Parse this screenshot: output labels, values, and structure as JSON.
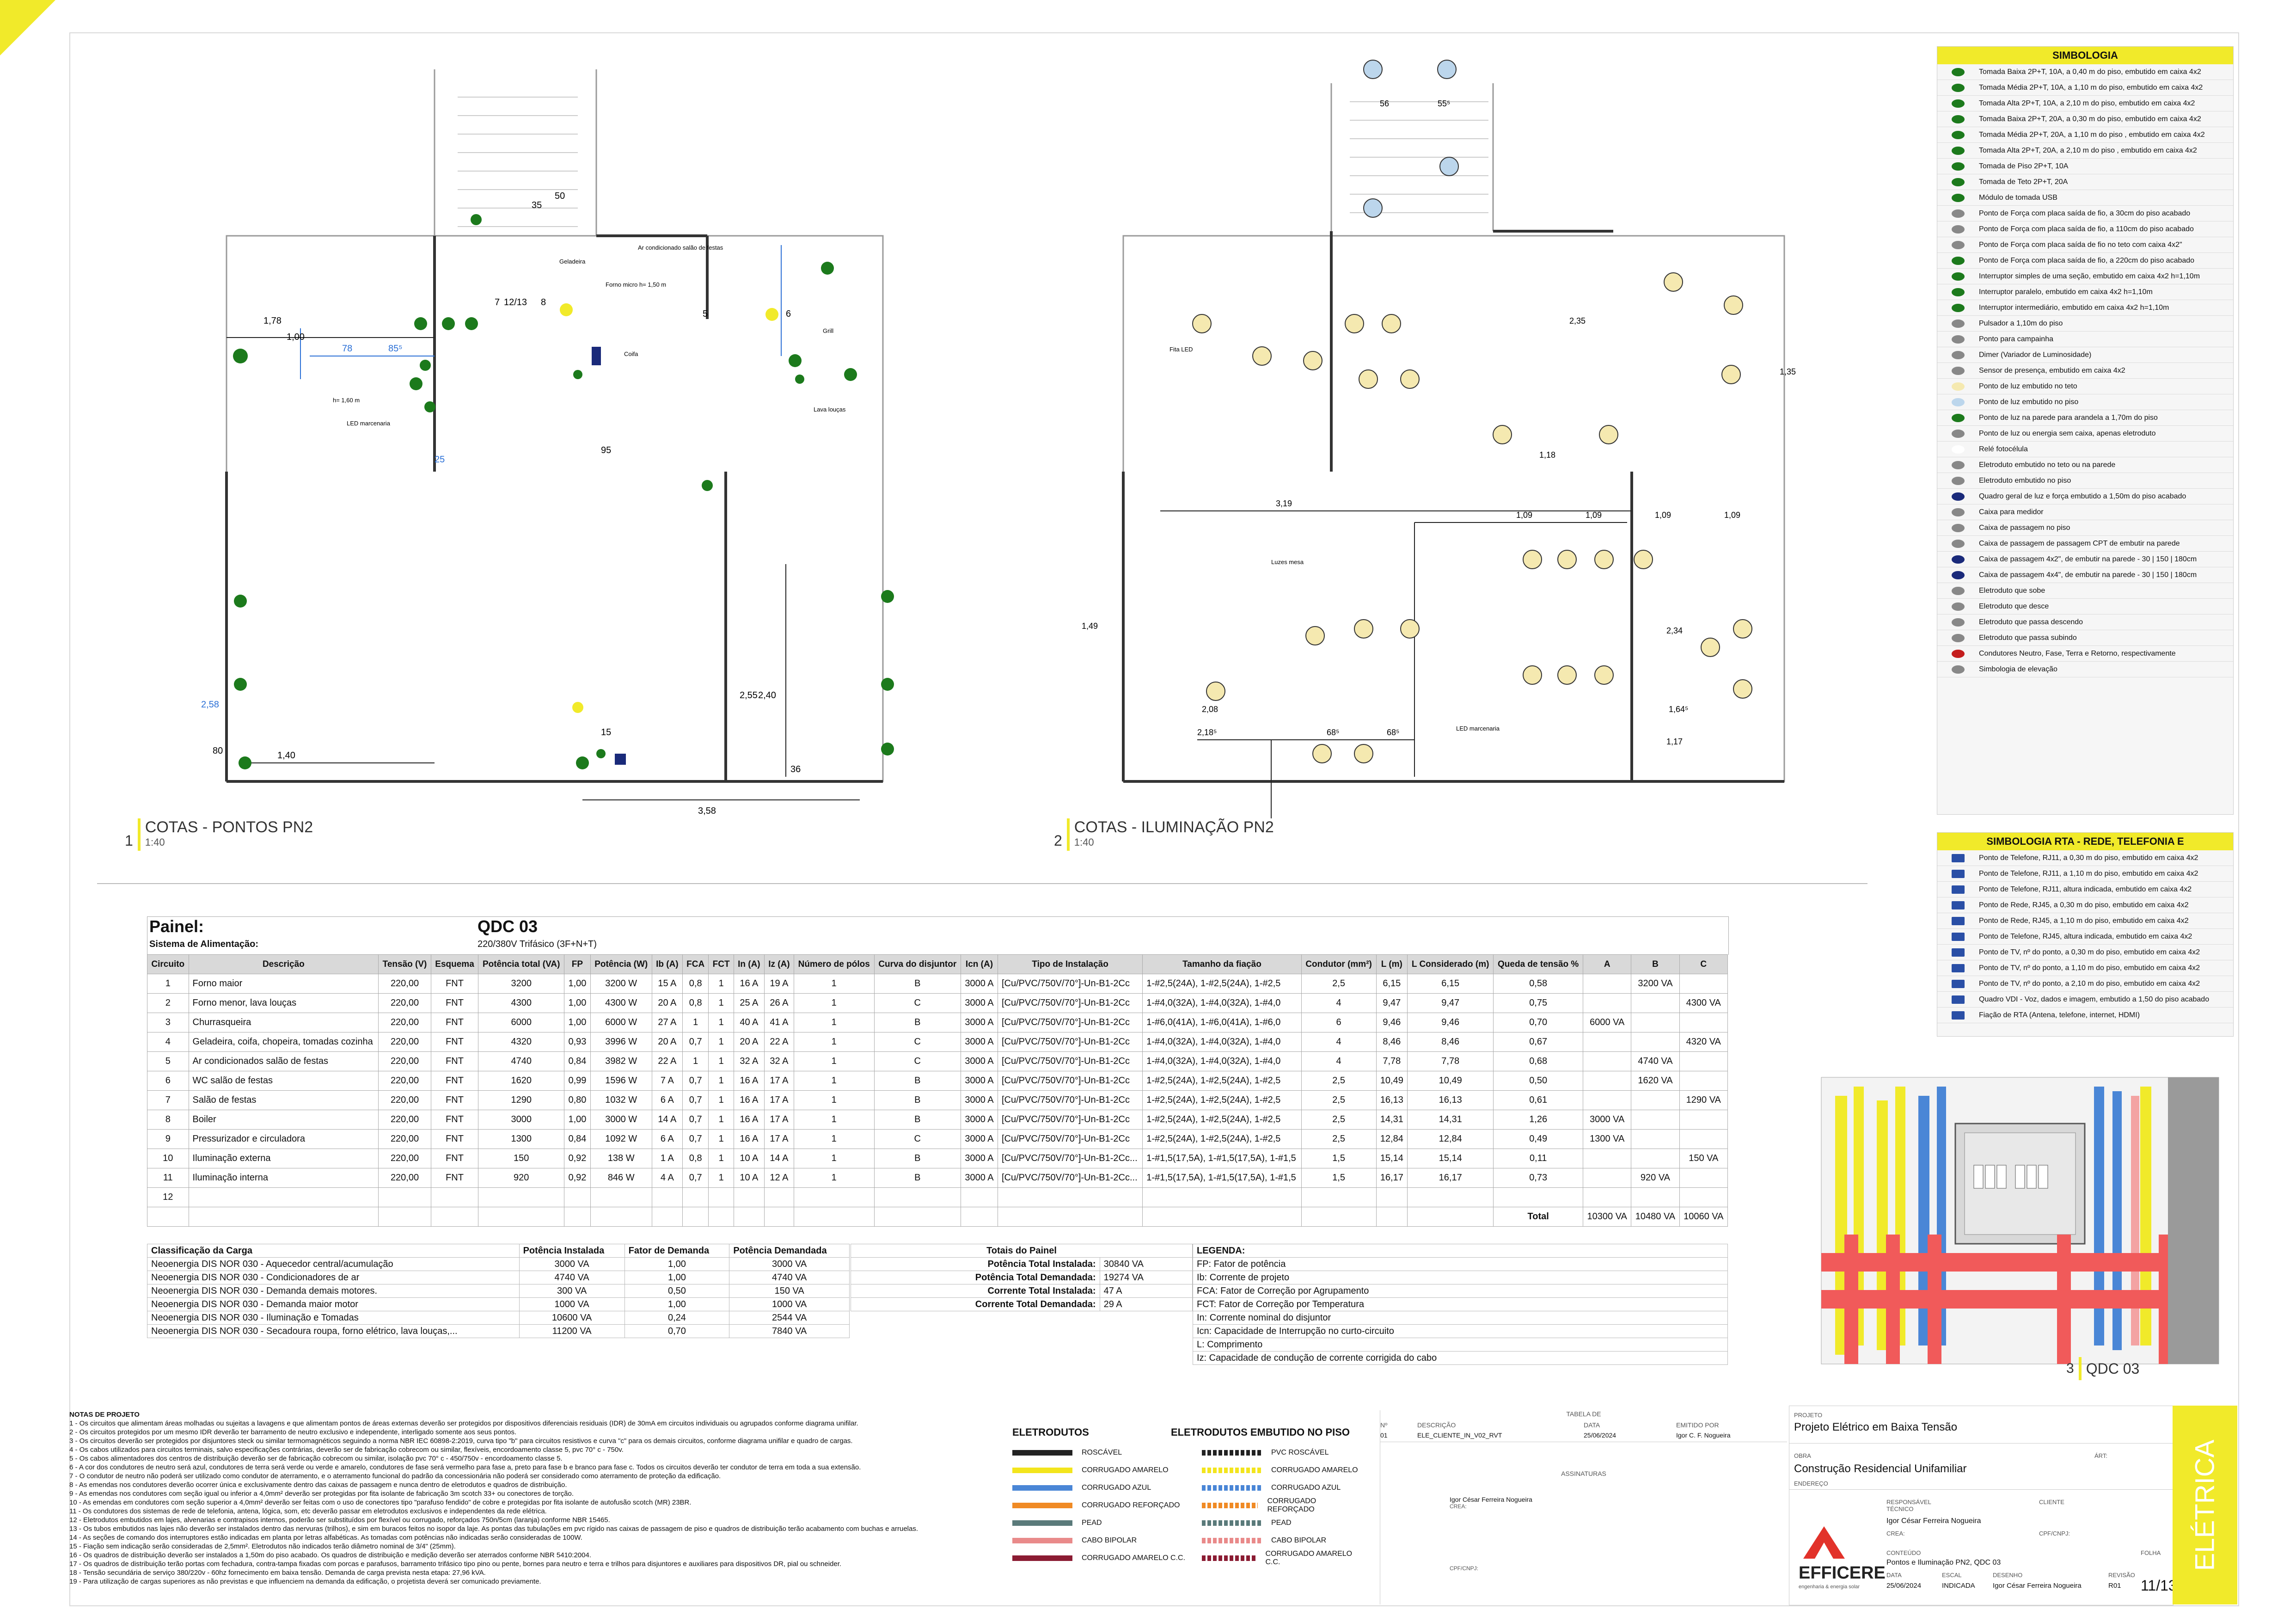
{
  "drawing1": {
    "number": "1",
    "title": "COTAS - PONTOS PN2",
    "scale": "1:40"
  },
  "drawing2": {
    "number": "2",
    "title": "COTAS - ILUMINAÇÃO PN2",
    "scale": "1:40"
  },
  "drawing3": {
    "number": "3",
    "title": "QDC 03"
  },
  "plan1_labels": {
    "d178": "1,78",
    "d100": "1,00",
    "d78": "78",
    "d85": "85⁵",
    "d95": "95",
    "d25": "25",
    "d35": "35",
    "d50": "50",
    "d140": "1,40",
    "d80": "80",
    "d258": "2,58",
    "d255": "2,55",
    "d240": "2,40",
    "d358": "3,58",
    "d15": "15",
    "d36": "36",
    "circ": "7",
    "circ2": "12/13",
    "circ3": "8",
    "circ4": "5",
    "circ5": "6",
    "lbl_led": "LED marcenaria",
    "lbl_coifa": "Coifa",
    "lbl_forno": "Forno micro h= 1,50 m",
    "lbl_ar": "Ar condicionado salão de festas",
    "lbl_geladeira": "Geladeira",
    "lbl_grill": "Grill",
    "lbl_lava": "Lava louças",
    "lbl_h": "h= 1,60 m"
  },
  "plan2_labels": {
    "d56": "56",
    "d55": "55⁵",
    "d319": "3,19",
    "d109": "1,09",
    "d118": "1,18",
    "d235": "2,35",
    "d135": "1,35",
    "d149": "1,49",
    "d208": "2,08",
    "d218": "2,18⁵",
    "d68": "68⁵",
    "d234": "2,34",
    "d117": "1,17",
    "d164": "1,64⁵",
    "lbl_luminaria": "Luzes mesa",
    "lbl_fita": "Fita LED",
    "lbl_led": "LED marcenaria"
  },
  "simbologia": {
    "title": "SIMBOLOGIA",
    "items": [
      "Tomada Baixa 2P+T, 10A, a 0,40 m do piso, embutido em caixa 4x2",
      "Tomada Média 2P+T, 10A, a 1,10 m do piso, embutido em caixa 4x2",
      "Tomada Alta 2P+T, 10A, a 2,10 m do piso, embutido em caixa 4x2",
      "Tomada Baixa 2P+T, 20A, a 0,30 m do piso, embutido em caixa 4x2",
      "Tomada Média 2P+T, 20A, a 1,10 m do piso , embutido em caixa 4x2",
      "Tomada Alta 2P+T, 20A, a 2,10 m do piso , embutido em caixa 4x2",
      "Tomada de Piso 2P+T, 10A",
      "Tomada de Teto 2P+T, 20A",
      "Módulo de tomada USB",
      "Ponto de Força com placa saída de fio, a 30cm do piso acabado",
      "Ponto de Força com placa saída de fio, a 110cm do piso acabado",
      "Ponto de Força com placa saída de fio no teto com caixa 4x2\"",
      "Ponto de Força com placa saída de fio, a 220cm do piso acabado",
      "Interruptor simples de uma seção, embutido em caixa 4x2 h=1,10m",
      "Interruptor paralelo, embutido em caixa 4x2 h=1,10m",
      "Interruptor intermediário, embutido em caixa 4x2 h=1,10m",
      "Pulsador a 1,10m do piso",
      "Ponto para campainha",
      "Dimer (Variador de Luminosidade)",
      "Sensor de presença, embutido em caixa 4x2",
      "Ponto de luz embutido no teto",
      "Ponto de luz embutido no piso",
      "Ponto de luz na parede para arandela a 1,70m do piso",
      "Ponto de luz ou energia sem caixa, apenas eletroduto",
      "Relé fotocélula",
      "Eletroduto embutido no teto ou na parede",
      "Eletroduto embutido no piso",
      "Quadro geral de luz e força embutido a 1,50m do piso acabado",
      "Caixa para medidor",
      "Caixa de passagem no piso",
      "Caixa de passagem de passagem CPT de embutir na parede",
      "Caixa de passagem 4x2\", de embutir na parede - 30 | 150 | 180cm",
      "Caixa de passagem 4x4\", de embutir na parede - 30 | 150 | 180cm",
      "Eletroduto que sobe",
      "Eletroduto que desce",
      "Eletroduto que passa descendo",
      "Eletroduto que passa subindo",
      "Condutores Neutro, Fase, Terra e Retorno, respectivamente",
      "Simbologia de elevação"
    ]
  },
  "simbologia_rta": {
    "title": "SIMBOLOGIA RTA - REDE, TELEFONIA E",
    "items": [
      "Ponto de Telefone, RJ11, a 0,30 m do piso, embutido em caixa 4x2",
      "Ponto de Telefone, RJ11, a 1,10 m do piso, embutido em caixa 4x2",
      "Ponto de Telefone, RJ11, altura indicada, embutido em caixa 4x2",
      "Ponto de Rede, RJ45, a 0,30 m do piso, embutido em caixa 4x2",
      "Ponto de Rede, RJ45, a 1,10 m do piso, embutido em caixa 4x2",
      "Ponto de Telefone, RJ45, altura indicada, embutido em caixa 4x2",
      "Ponto de TV, nº do ponto, a 0,30 m do piso, embutido em caixa 4x2",
      "Ponto de TV, nº do ponto, a 1,10 m do piso, embutido em caixa 4x2",
      "Ponto de TV, nº do ponto, a 2,10 m do piso, embutido em caixa 4x2",
      "Quadro VDI - Voz, dados e imagem, embutido a 1,50 do piso acabado",
      "Fiação de RTA (Antena, telefone, internet, HDMI)"
    ]
  },
  "panel": {
    "label": "Painel:",
    "name": "QDC 03",
    "system_label": "Sistema de Alimentação:",
    "system_value": "220/380V Trifásico (3F+N+T)",
    "headers": [
      "Circuito",
      "Descrição",
      "Tensão (V)",
      "Esquema",
      "Potência total (VA)",
      "FP",
      "Potência (W)",
      "Ib (A)",
      "FCA",
      "FCT",
      "In (A)",
      "Iz (A)",
      "Número de pólos",
      "Curva do disjuntor",
      "Icn (A)",
      "Tipo de Instalação",
      "Tamanho da fiação",
      "Condutor (mm²)",
      "L (m)",
      "L Considerado (m)",
      "Queda de tensão %",
      "A",
      "B",
      "C"
    ],
    "rows": [
      [
        "1",
        "Forno maior",
        "220,00",
        "FNT",
        "3200",
        "1,00",
        "3200 W",
        "15 A",
        "0,8",
        "1",
        "16 A",
        "19 A",
        "1",
        "B",
        "3000 A",
        "[Cu/PVC/750V/70°]-Un-B1-2Cc",
        "1-#2,5(24A), 1-#2,5(24A), 1-#2,5",
        "2,5",
        "6,15",
        "6,15",
        "0,58",
        "",
        "3200 VA",
        ""
      ],
      [
        "2",
        "Forno menor, lava louças",
        "220,00",
        "FNT",
        "4300",
        "1,00",
        "4300 W",
        "20 A",
        "0,8",
        "1",
        "25 A",
        "26 A",
        "1",
        "C",
        "3000 A",
        "[Cu/PVC/750V/70°]-Un-B1-2Cc",
        "1-#4,0(32A), 1-#4,0(32A), 1-#4,0",
        "4",
        "9,47",
        "9,47",
        "0,75",
        "",
        "",
        "4300 VA"
      ],
      [
        "3",
        "Churrasqueira",
        "220,00",
        "FNT",
        "6000",
        "1,00",
        "6000 W",
        "27 A",
        "1",
        "1",
        "40 A",
        "41 A",
        "1",
        "B",
        "3000 A",
        "[Cu/PVC/750V/70°]-Un-B1-2Cc",
        "1-#6,0(41A), 1-#6,0(41A), 1-#6,0",
        "6",
        "9,46",
        "9,46",
        "0,70",
        "6000 VA",
        "",
        ""
      ],
      [
        "4",
        "Geladeira, coifa, chopeira, tomadas cozinha",
        "220,00",
        "FNT",
        "4320",
        "0,93",
        "3996 W",
        "20 A",
        "0,7",
        "1",
        "20 A",
        "22 A",
        "1",
        "C",
        "3000 A",
        "[Cu/PVC/750V/70°]-Un-B1-2Cc",
        "1-#4,0(32A), 1-#4,0(32A), 1-#4,0",
        "4",
        "8,46",
        "8,46",
        "0,67",
        "",
        "",
        "4320 VA"
      ],
      [
        "5",
        "Ar condicionados salão de festas",
        "220,00",
        "FNT",
        "4740",
        "0,84",
        "3982 W",
        "22 A",
        "1",
        "1",
        "32 A",
        "32 A",
        "1",
        "C",
        "3000 A",
        "[Cu/PVC/750V/70°]-Un-B1-2Cc",
        "1-#4,0(32A), 1-#4,0(32A), 1-#4,0",
        "4",
        "7,78",
        "7,78",
        "0,68",
        "",
        "4740 VA",
        ""
      ],
      [
        "6",
        "WC salão de festas",
        "220,00",
        "FNT",
        "1620",
        "0,99",
        "1596 W",
        "7 A",
        "0,7",
        "1",
        "16 A",
        "17 A",
        "1",
        "B",
        "3000 A",
        "[Cu/PVC/750V/70°]-Un-B1-2Cc",
        "1-#2,5(24A), 1-#2,5(24A), 1-#2,5",
        "2,5",
        "10,49",
        "10,49",
        "0,50",
        "",
        "1620 VA",
        ""
      ],
      [
        "7",
        "Salão de festas",
        "220,00",
        "FNT",
        "1290",
        "0,80",
        "1032 W",
        "6 A",
        "0,7",
        "1",
        "16 A",
        "17 A",
        "1",
        "B",
        "3000 A",
        "[Cu/PVC/750V/70°]-Un-B1-2Cc",
        "1-#2,5(24A), 1-#2,5(24A), 1-#2,5",
        "2,5",
        "16,13",
        "16,13",
        "0,61",
        "",
        "",
        "1290 VA"
      ],
      [
        "8",
        "Boiler",
        "220,00",
        "FNT",
        "3000",
        "1,00",
        "3000 W",
        "14 A",
        "0,7",
        "1",
        "16 A",
        "17 A",
        "1",
        "B",
        "3000 A",
        "[Cu/PVC/750V/70°]-Un-B1-2Cc",
        "1-#2,5(24A), 1-#2,5(24A), 1-#2,5",
        "2,5",
        "14,31",
        "14,31",
        "1,26",
        "3000 VA",
        "",
        ""
      ],
      [
        "9",
        "Pressurizador e circuladora",
        "220,00",
        "FNT",
        "1300",
        "0,84",
        "1092 W",
        "6 A",
        "0,7",
        "1",
        "16 A",
        "17 A",
        "1",
        "C",
        "3000 A",
        "[Cu/PVC/750V/70°]-Un-B1-2Cc",
        "1-#2,5(24A), 1-#2,5(24A), 1-#2,5",
        "2,5",
        "12,84",
        "12,84",
        "0,49",
        "1300 VA",
        "",
        ""
      ],
      [
        "10",
        "Iluminação externa",
        "220,00",
        "FNT",
        "150",
        "0,92",
        "138 W",
        "1 A",
        "0,8",
        "1",
        "10 A",
        "14 A",
        "1",
        "B",
        "3000 A",
        "[Cu/PVC/750V/70°]-Un-B1-2Cc...",
        "1-#1,5(17,5A), 1-#1,5(17,5A), 1-#1,5",
        "1,5",
        "15,14",
        "15,14",
        "0,11",
        "",
        "",
        "150 VA"
      ],
      [
        "11",
        "Iluminação interna",
        "220,00",
        "FNT",
        "920",
        "0,92",
        "846 W",
        "4 A",
        "0,7",
        "1",
        "10 A",
        "12 A",
        "1",
        "B",
        "3000 A",
        "[Cu/PVC/750V/70°]-Un-B1-2Cc...",
        "1-#1,5(17,5A), 1-#1,5(17,5A), 1-#1,5",
        "1,5",
        "16,17",
        "16,17",
        "0,73",
        "",
        "920 VA",
        ""
      ],
      [
        "12",
        "",
        "",
        "",
        "",
        "",
        "",
        "",
        "",
        "",
        "",
        "",
        "",
        "",
        "",
        "",
        "",
        "",
        "",
        "",
        "",
        "",
        "",
        ""
      ]
    ],
    "total_label": "Total",
    "total_a": "10300 VA",
    "total_b": "10480 VA",
    "total_c": "10060 VA"
  },
  "classificacao": {
    "headers": [
      "Classificação da Carga",
      "Potência Instalada",
      "Fator de Demanda",
      "Potência Demandada"
    ],
    "rows": [
      [
        "Neoenergia DIS NOR 030  - Aquecedor central/acumulação",
        "3000 VA",
        "1,00",
        "3000 VA"
      ],
      [
        "Neoenergia DIS NOR 030 - Condicionadores de ar",
        "4740 VA",
        "1,00",
        "4740 VA"
      ],
      [
        "Neoenergia DIS NOR 030 - Demanda demais motores.",
        "300 VA",
        "0,50",
        "150 VA"
      ],
      [
        "Neoenergia DIS NOR 030 - Demanda maior motor",
        "1000 VA",
        "1,00",
        "1000 VA"
      ],
      [
        "Neoenergia DIS NOR 030 - Iluminação e Tomadas",
        "10600 VA",
        "0,24",
        "2544 VA"
      ],
      [
        "Neoenergia DIS NOR 030 - Secadoura roupa, forno elétrico, lava louças,...",
        "11200 VA",
        "0,70",
        "7840 VA"
      ]
    ]
  },
  "totais": {
    "title": "Totais do Painel",
    "rows": [
      [
        "Potência Total Instalada:",
        "30840 VA"
      ],
      [
        "Potência Total Demandada:",
        "19274 VA"
      ],
      [
        "Corrente Total Instalada:",
        "47 A"
      ],
      [
        "Corrente Total Demandada:",
        "29 A"
      ]
    ]
  },
  "legenda": {
    "title": "LEGENDA:",
    "items": [
      "FP: Fator de potência",
      "Ib: Corrente de projeto",
      "FCA: Fator de Correção por Agrupamento",
      "FCT: Fator de Correção por Temperatura",
      "In: Corrente nominal do disjuntor",
      "Icn: Capacidade de Interrupção no curto-circuito",
      "L: Comprimento",
      "Iz: Capacidade de condução de corrente corrigida do cabo"
    ]
  },
  "notas": {
    "title": "NOTAS DE PROJETO",
    "items": [
      "1 - Os circuitos que alimentam áreas molhadas ou sujeitas a lavagens e que alimentam pontos de áreas externas deverão ser protegidos por dispositivos diferenciais residuais (IDR) de 30mA em circuitos individuais ou agrupados conforme diagrama unifilar.",
      "2 - Os circuitos protegidos por um mesmo IDR deverão ter barramento de neutro exclusivo e independente, interligado somente aos seus pontos.",
      "3 - Os circuitos deverão ser protegidos por disjuntores steck ou similar termomagnéticos seguindo a norma NBR IEC 60898-2:2019, curva tipo \"b\" para circuitos resistivos e curva \"c\" para os demais circuitos, conforme diagrama unifilar e quadro de cargas.",
      "4 - Os cabos utilizados para circuitos terminais, salvo especificações contrárias, deverão ser de fabricação cobrecom ou similar, flexíveis, encordoamento classe 5, pvc 70° c - 750v.",
      "5 - Os cabos alimentadores dos centros de distribuição deverão ser de fabricação cobrecom ou similar, isolação pvc 70° c - 450/750v - encordoamento classe 5.",
      "6 - A cor dos condutores de neutro será azul, condutores de terra será verde ou verde e amarelo, condutores de fase será vermelho para fase a, preto para fase b e branco para fase c. Todos os circuitos deverão ter condutor de terra em toda a sua extensão.",
      "7 - O condutor de neutro não poderá ser utilizado como condutor de aterramento, e o aterramento funcional do padrão da concessionária não poderá ser considerado como aterramento de proteção da edificação.",
      "8 - As emendas nos condutores deverão ocorrer única e exclusivamente dentro das caixas de passagem e nunca dentro de eletrodutos e quadros de distribuição.",
      "9 - As emendas nos condutores com seção igual ou inferior a 4,0mm² deverão ser protegidas por fita isolante de fabricação 3m scotch 33+ ou conectores de torção.",
      "10 - As emendas em condutores com seção superior a 4,0mm² deverão ser feitas com o uso de conectores tipo \"parafuso fendido\" de cobre e protegidas por fita isolante de autofusão scotch (MR) 23BR.",
      "11 - Os condutores dos sistemas de rede de telefonia, antena, lógica, som, etc deverão passar em eletrodutos exclusivos e independentes da rede elétrica.",
      "12 - Eletrodutos embutidos em lajes, alvenarias e contrapisos internos, poderão ser substituídos por flexível ou corrugado, reforçados 750n/5cm (laranja) conforme NBR 15465.",
      "13 - Os tubos embutidos nas lajes não deverão ser instalados dentro das nervuras (trilhos), e sim em buracos feitos no isopor da laje. As pontas das tubulações em pvc rígido nas caixas de passagem de piso e quadros de distribuição terão acabamento com buchas e arruelas.",
      "14 - As seções de comando dos interruptores estão indicadas em planta por letras alfabéticas. As tomadas com potências não indicadas serão consideradas de 100W.",
      "15 - Fiação sem indicação serão consideradas de 2,5mm². Eletrodutos não indicados terão diâmetro nominal de 3/4\" (25mm).",
      "16 - Os quadros de distribuição deverão ser instalados a 1,50m do piso acabado. Os quadros de distribuição e medição deverão ser aterrados conforme NBR 5410:2004.",
      "17 - Os quadros de distribuição terão portas com fechadura, contra-tampa fixadas com porcas e parafusos, barramento trifásico tipo pino ou pente, bornes para neutro e terra e trilhos para disjuntores e auxiliares para dispositivos DR, pial ou schneider.",
      "18 - Tensão secundária de serviço 380/220v - 60hz fornecimento em baixa tensão. Demanda de carga prevista nesta etapa: 27,96 kVA.",
      "19 - Para utilização de cargas superiores as não previstas e que influenciem na demanda da edificação, o projetista deverá ser comunicado previamente."
    ]
  },
  "eletrodutos": {
    "title_a": "ELETRODUTOS",
    "title_b": "ELETRODUTOS EMBUTIDO NO PISO",
    "left": [
      "ROSCÁVEL",
      "CORRUGADO AMARELO",
      "CORRUGADO AZUL",
      "CORRUGADO REFORÇADO",
      "PEAD",
      "CABO BIPOLAR",
      "CORRUGADO AMARELO C.C."
    ],
    "right": [
      "PVC ROSCÁVEL",
      "CORRUGADO AMARELO",
      "CORRUGADO AZUL",
      "CORRUGADO REFORÇADO",
      "PEAD",
      "CABO BIPOLAR",
      "CORRUGADO AMARELO C.C."
    ],
    "colors": [
      "#222222",
      "#f3e51d",
      "#4a86d6",
      "#f08a24",
      "#5a7a7a",
      "#e98a8a",
      "#8b1c33"
    ]
  },
  "revisoes": {
    "title": "TABELA DE",
    "headers": [
      "Nº",
      "DESCRIÇÃO",
      "DATA",
      "EMITIDO POR"
    ],
    "row": [
      "01",
      "ELE_CLIENTE_IN_V02_RVT",
      "25/06/2024",
      "Igor C. F. Nogueira"
    ],
    "assinaturas": "ASSINATURAS",
    "signer": "Igor César Ferreira Nogueira",
    "crea": "CREA:",
    "cpf": "CPF/CNPJ:"
  },
  "carimbo": {
    "projeto_lbl": "PROJETO",
    "projeto": "Projeto Elétrico em Baixa Tensão",
    "obra_lbl": "OBRA",
    "obra": "Construção Residencial Unifamiliar",
    "area_lbl": "ÁRT:",
    "endereco_lbl": "ENDEREÇO",
    "resp_lbl": "RESPONSÁVEL TÉCNICO",
    "resp": "Igor César Ferreira Nogueira",
    "crea_lbl": "CREA:",
    "cliente_lbl": "CLIENTE",
    "cpf_lbl": "CPF/CNPJ:",
    "conteudo_lbl": "CONTEÚDO",
    "conteudo": "Pontos e Iluminação PN2, QDC 03",
    "folha_lbl": "FOLHA",
    "data_lbl": "DATA",
    "data": "25/06/2024",
    "escala_lbl": "ESCAL",
    "escala": "INDICADA",
    "desenho_lbl": "DESENHO",
    "desenho": "Igor César Ferreira Nogueira",
    "revisao_lbl": "REVISÃO",
    "revisao": "R01",
    "folha": "11/13",
    "brand": "EFFICERE",
    "brand_sub": "engenharia & energia solar",
    "disciplina": "ELÉTRICA"
  }
}
